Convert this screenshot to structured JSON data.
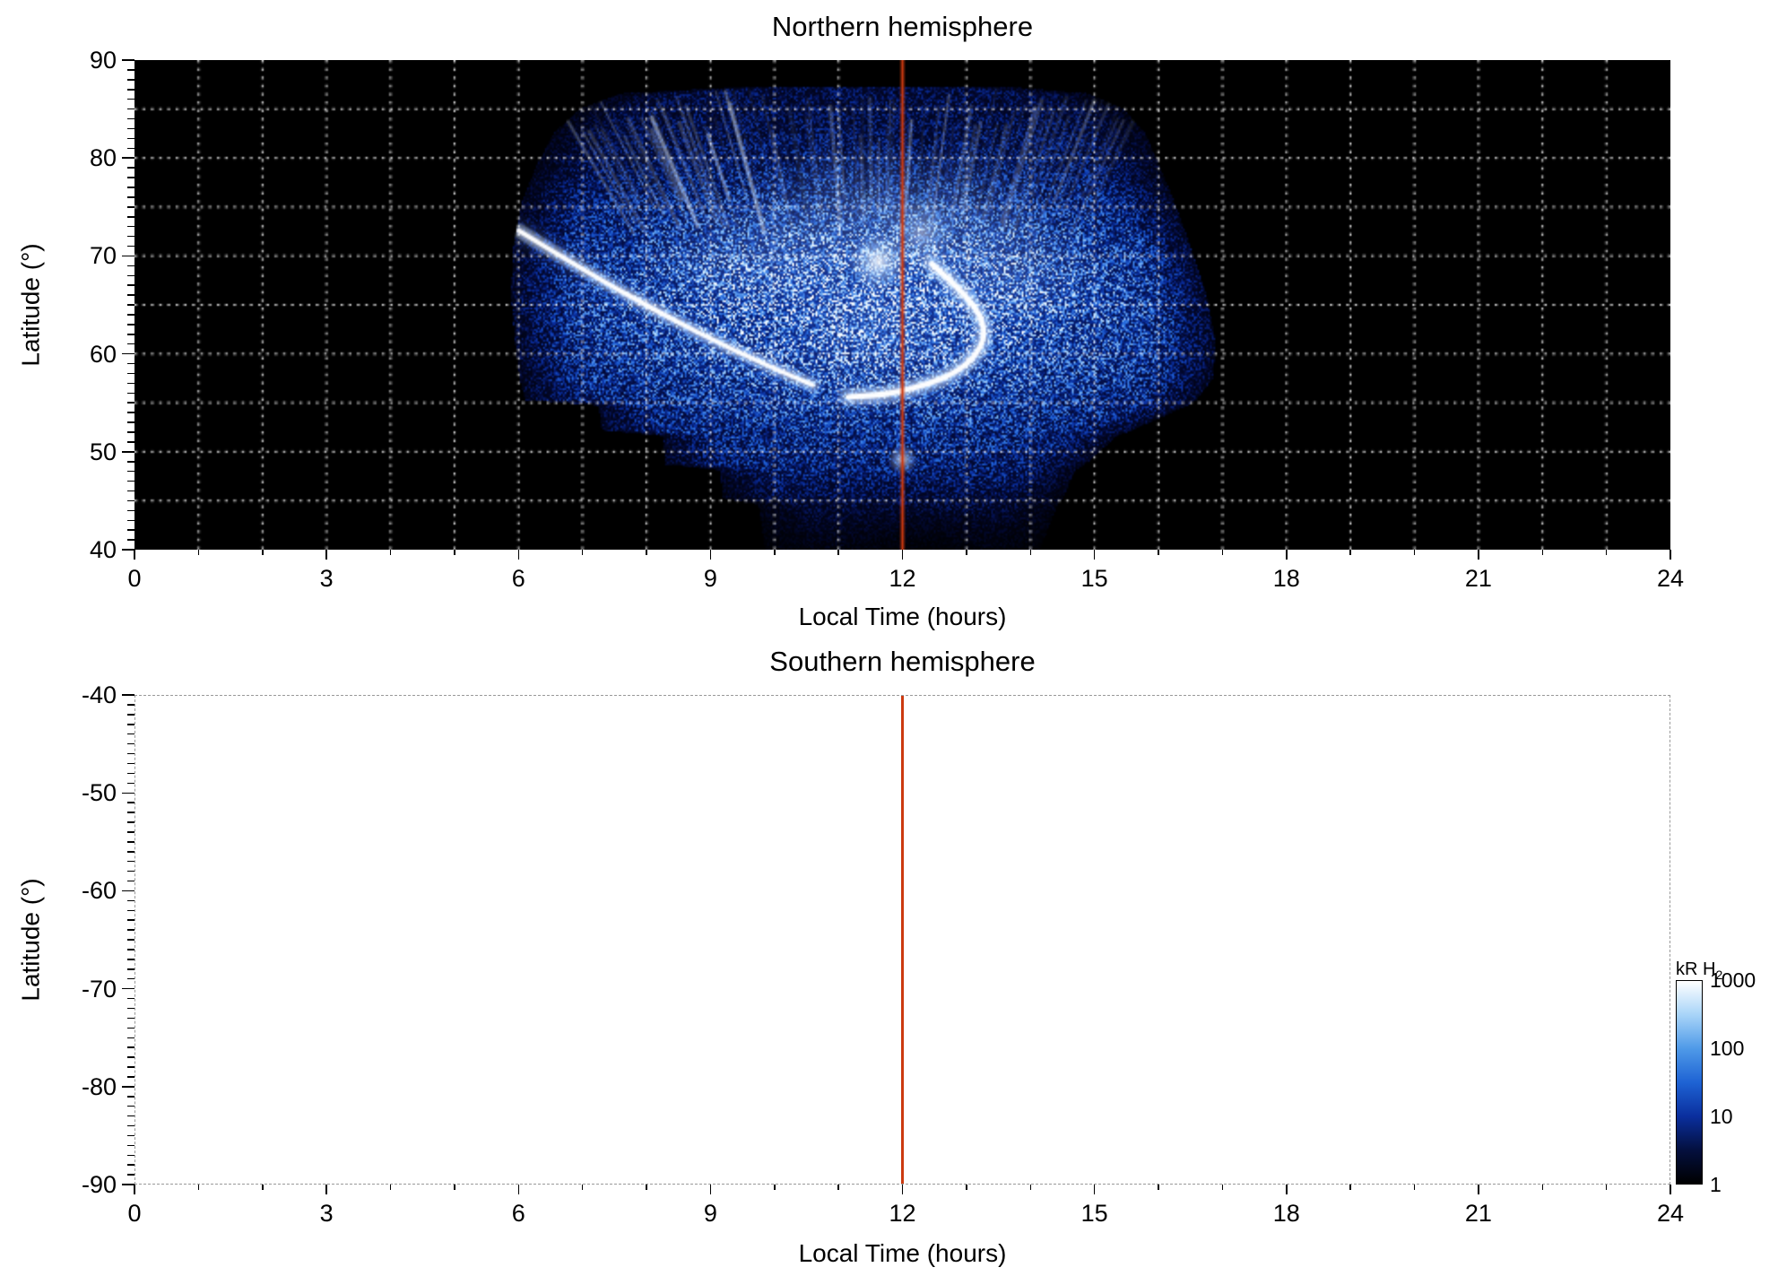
{
  "figure": {
    "colorbar": {
      "label": "kR H",
      "label_sub": "2",
      "scale": "log",
      "range_kR": [
        1,
        1000
      ],
      "tick_values": [
        1000,
        100,
        10,
        1
      ],
      "gradient_stops": [
        "#000000",
        "#04103f",
        "#0a2f9e",
        "#1e63d4",
        "#4f9ae8",
        "#a8d4f8",
        "#ffffff"
      ]
    }
  },
  "chart_data": [
    {
      "type": "heatmap",
      "panel": "north",
      "title": "Northern hemisphere",
      "xlabel": "Local Time (hours)",
      "ylabel": "Latitude (°)",
      "xlim": [
        0,
        24
      ],
      "ylim": [
        40,
        90
      ],
      "x_major_ticks": [
        0,
        3,
        6,
        9,
        12,
        15,
        18,
        21,
        24
      ],
      "y_major_ticks": [
        40,
        50,
        60,
        70,
        80,
        90
      ],
      "x_minor_step_hours": 1,
      "y_minor_step_deg": 1,
      "grid": {
        "color": "#ffffff",
        "style": "dotted",
        "x_step_hours": 1,
        "y_step_deg": 5
      },
      "background": "#000000",
      "meridian_line": {
        "x": 12,
        "color": "#cc3a10"
      },
      "units": "kR H2",
      "colormap": {
        "scale": "log",
        "stops": [
          {
            "t": 0.0,
            "c": [
              0,
              0,
              0
            ]
          },
          {
            "t": 0.16,
            "c": [
              3,
              10,
              58
            ]
          },
          {
            "t": 0.34,
            "c": [
              9,
              45,
              158
            ]
          },
          {
            "t": 0.52,
            "c": [
              35,
              105,
              221
            ]
          },
          {
            "t": 0.72,
            "c": [
              122,
              181,
              244
            ]
          },
          {
            "t": 0.88,
            "c": [
              215,
              238,
              254
            ]
          },
          {
            "t": 1.0,
            "c": [
              255,
              255,
              255
            ]
          }
        ]
      },
      "swath": {
        "description": "Fan-shaped auroral H2 UV emission swath observed between ~06:00 and ~17:00 local time, latitudes ~40-87 deg; bright main oval arcs near 56-72 deg, grainy dim blue toward edges, black (no data) elsewhere",
        "boundaries": [
          {
            "lat": 87.3,
            "lt_min": 9.6,
            "lt_max": 13.6
          },
          {
            "lat": 86.6,
            "lt_min": 7.6,
            "lt_max": 14.9
          },
          {
            "lat": 85.0,
            "lt_min": 6.95,
            "lt_max": 15.45
          },
          {
            "lat": 82.5,
            "lt_min": 6.55,
            "lt_max": 15.8
          },
          {
            "lat": 79.5,
            "lt_min": 6.3,
            "lt_max": 16.0
          },
          {
            "lat": 75.5,
            "lt_min": 6.05,
            "lt_max": 16.25
          },
          {
            "lat": 71.0,
            "lt_min": 5.92,
            "lt_max": 16.5
          },
          {
            "lat": 66.0,
            "lt_min": 5.88,
            "lt_max": 16.75
          },
          {
            "lat": 61.0,
            "lt_min": 5.95,
            "lt_max": 16.9
          },
          {
            "lat": 57.5,
            "lt_min": 6.02,
            "lt_max": 16.85
          },
          {
            "lat": 55.3,
            "lt_min": 6.1,
            "lt_max": 16.6
          },
          {
            "lat": 54.7,
            "lt_min": 7.25,
            "lt_max": 16.45
          },
          {
            "lat": 52.2,
            "lt_min": 7.3,
            "lt_max": 15.6
          },
          {
            "lat": 51.6,
            "lt_min": 8.25,
            "lt_max": 15.35
          },
          {
            "lat": 48.7,
            "lt_min": 8.3,
            "lt_max": 14.85
          },
          {
            "lat": 48.1,
            "lt_min": 9.15,
            "lt_max": 14.7
          },
          {
            "lat": 45.2,
            "lt_min": 9.2,
            "lt_max": 14.5
          },
          {
            "lat": 44.6,
            "lt_min": 9.75,
            "lt_max": 14.42
          },
          {
            "lat": 40.0,
            "lt_min": 9.85,
            "lt_max": 14.15
          }
        ]
      },
      "features": [
        {
          "name": "dawn-arc-streak",
          "type": "bright-arc",
          "points": [
            [
              6.0,
              72.6
            ],
            [
              7.0,
              68.6
            ],
            [
              8.2,
              64.2
            ],
            [
              9.4,
              60.2
            ],
            [
              10.6,
              56.8
            ]
          ]
        },
        {
          "name": "dusk-crescent-arc",
          "type": "bright-arc",
          "points": [
            [
              12.45,
              69.2
            ],
            [
              13.1,
              65.6
            ],
            [
              13.35,
              61.6
            ],
            [
              12.9,
              58.0
            ],
            [
              11.9,
              55.9
            ],
            [
              11.15,
              55.6
            ]
          ]
        },
        {
          "name": "noon-bright-spot",
          "type": "spot",
          "lt": 11.62,
          "lat": 69.4,
          "r_deg": 1.4,
          "a": 0.9
        },
        {
          "name": "polar-spot",
          "type": "spot",
          "lt": 12.3,
          "lat": 72.3,
          "r_deg": 1.6,
          "a": 0.45
        },
        {
          "name": "low-lat-spot",
          "type": "spot",
          "lt": 12.0,
          "lat": 49.2,
          "r_deg": 0.7,
          "a": 0.8
        },
        {
          "name": "polar-haze",
          "type": "glow",
          "lt": 11.8,
          "lat": 74.5,
          "rx_h": 2.6,
          "ry_deg": 7.0,
          "a": 0.2
        },
        {
          "name": "dawn-haze",
          "type": "glow",
          "lt": 9.8,
          "lat": 70.0,
          "rx_h": 2.0,
          "ry_deg": 5.5,
          "a": 0.13
        },
        {
          "name": "dusk-haze",
          "type": "glow",
          "lt": 13.6,
          "lat": 69.0,
          "rx_h": 1.5,
          "ry_deg": 6.5,
          "a": 0.15
        },
        {
          "name": "central-haze",
          "type": "glow",
          "lt": 11.6,
          "lat": 63.0,
          "rx_h": 1.7,
          "ry_deg": 7.5,
          "a": 0.1
        }
      ]
    },
    {
      "type": "heatmap",
      "panel": "south",
      "title": "Southern hemisphere",
      "xlabel": "Local Time (hours)",
      "ylabel": "Latitude (°)",
      "xlim": [
        0,
        24
      ],
      "ylim": [
        -90,
        -40
      ],
      "x_major_ticks": [
        0,
        3,
        6,
        9,
        12,
        15,
        18,
        21,
        24
      ],
      "y_major_ticks": [
        -40,
        -50,
        -60,
        -70,
        -80,
        -90
      ],
      "x_minor_step_hours": 1,
      "y_minor_step_deg": 1,
      "background": "#ffffff",
      "meridian_line": {
        "x": 12,
        "color": "#cc3a10"
      },
      "note": "empty panel - no emission data shown"
    }
  ]
}
